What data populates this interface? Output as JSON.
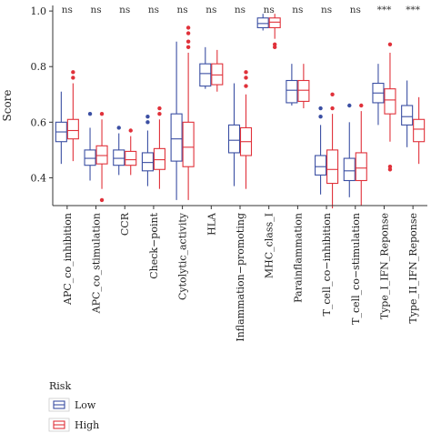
{
  "chart_data": {
    "type": "boxplot",
    "ylabel": "Score",
    "ylim": [
      0.3,
      1.02
    ],
    "yticks": [
      0.4,
      0.6,
      0.8,
      1.0
    ],
    "ytick_labels": [
      "0.4",
      "0.6",
      "0.8",
      "1.0"
    ],
    "grid": false,
    "legend": {
      "title": "Risk",
      "placement": "bottom-left",
      "entries": [
        "Low",
        "High"
      ]
    },
    "colors": {
      "Low": "#3b4fa3",
      "High": "#e0313a"
    },
    "categories": [
      "APC_co_inhibition",
      "APC_co_stimulation",
      "CCR",
      "Check−point",
      "Cytolytic_activity",
      "HLA",
      "Inflammation−promoting",
      "MHC_class_I",
      "Parainflammation",
      "T_cell_co−inhibition",
      "T_cell_co−stimulation",
      "Type_I_IFN_Reponse",
      "Type_II_IFN_Reponse"
    ],
    "significance": [
      "ns",
      "ns",
      "ns",
      "ns",
      "ns",
      "ns",
      "ns",
      "ns",
      "ns",
      "ns",
      "ns",
      "***",
      "***"
    ],
    "series": [
      {
        "name": "Low",
        "boxes": [
          {
            "min": 0.45,
            "q1": 0.53,
            "median": 0.565,
            "q3": 0.6,
            "max": 0.71,
            "outliers": []
          },
          {
            "min": 0.39,
            "q1": 0.445,
            "median": 0.47,
            "q3": 0.5,
            "max": 0.58,
            "outliers": [
              0.63
            ]
          },
          {
            "min": 0.41,
            "q1": 0.445,
            "median": 0.47,
            "q3": 0.5,
            "max": 0.56,
            "outliers": [
              0.58
            ]
          },
          {
            "min": 0.37,
            "q1": 0.425,
            "median": 0.455,
            "q3": 0.49,
            "max": 0.57,
            "outliers": [
              0.6,
              0.62
            ]
          },
          {
            "min": 0.32,
            "q1": 0.46,
            "median": 0.54,
            "q3": 0.63,
            "max": 0.89,
            "outliers": []
          },
          {
            "min": 0.72,
            "q1": 0.73,
            "median": 0.775,
            "q3": 0.81,
            "max": 0.87,
            "outliers": []
          },
          {
            "min": 0.37,
            "q1": 0.49,
            "median": 0.535,
            "q3": 0.59,
            "max": 0.74,
            "outliers": []
          },
          {
            "min": 0.93,
            "q1": 0.94,
            "median": 0.955,
            "q3": 0.975,
            "max": 0.99,
            "outliers": []
          },
          {
            "min": 0.66,
            "q1": 0.67,
            "median": 0.715,
            "q3": 0.75,
            "max": 0.81,
            "outliers": []
          },
          {
            "min": 0.34,
            "q1": 0.41,
            "median": 0.44,
            "q3": 0.48,
            "max": 0.59,
            "outliers": [
              0.62,
              0.65
            ]
          },
          {
            "min": 0.33,
            "q1": 0.39,
            "median": 0.425,
            "q3": 0.47,
            "max": 0.6,
            "outliers": [
              0.66
            ]
          },
          {
            "min": 0.59,
            "q1": 0.67,
            "median": 0.705,
            "q3": 0.74,
            "max": 0.81,
            "outliers": []
          },
          {
            "min": 0.51,
            "q1": 0.59,
            "median": 0.62,
            "q3": 0.66,
            "max": 0.75,
            "outliers": []
          }
        ]
      },
      {
        "name": "High",
        "boxes": [
          {
            "min": 0.46,
            "q1": 0.54,
            "median": 0.57,
            "q3": 0.61,
            "max": 0.74,
            "outliers": [
              0.76,
              0.78
            ]
          },
          {
            "min": 0.36,
            "q1": 0.45,
            "median": 0.48,
            "q3": 0.515,
            "max": 0.61,
            "outliers": [
              0.32,
              0.63
            ]
          },
          {
            "min": 0.41,
            "q1": 0.445,
            "median": 0.465,
            "q3": 0.495,
            "max": 0.55,
            "outliers": [
              0.57
            ]
          },
          {
            "min": 0.36,
            "q1": 0.43,
            "median": 0.465,
            "q3": 0.505,
            "max": 0.61,
            "outliers": [
              0.63,
              0.65
            ]
          },
          {
            "min": 0.32,
            "q1": 0.44,
            "median": 0.51,
            "q3": 0.6,
            "max": 0.85,
            "outliers": [
              0.87,
              0.89,
              0.92,
              0.94
            ]
          },
          {
            "min": 0.71,
            "q1": 0.735,
            "median": 0.77,
            "q3": 0.81,
            "max": 0.86,
            "outliers": []
          },
          {
            "min": 0.36,
            "q1": 0.48,
            "median": 0.53,
            "q3": 0.58,
            "max": 0.7,
            "outliers": [
              0.73,
              0.76,
              0.78
            ]
          },
          {
            "min": 0.9,
            "q1": 0.94,
            "median": 0.96,
            "q3": 0.975,
            "max": 0.99,
            "outliers": [
              0.87,
              0.88
            ]
          },
          {
            "min": 0.65,
            "q1": 0.675,
            "median": 0.715,
            "q3": 0.75,
            "max": 0.81,
            "outliers": []
          },
          {
            "min": 0.29,
            "q1": 0.38,
            "median": 0.43,
            "q3": 0.5,
            "max": 0.63,
            "outliers": [
              0.65,
              0.7
            ]
          },
          {
            "min": 0.3,
            "q1": 0.39,
            "median": 0.435,
            "q3": 0.49,
            "max": 0.64,
            "outliers": [
              0.66
            ]
          },
          {
            "min": 0.53,
            "q1": 0.63,
            "median": 0.68,
            "q3": 0.72,
            "max": 0.85,
            "outliers": [
              0.43,
              0.44,
              0.88
            ]
          },
          {
            "min": 0.45,
            "q1": 0.53,
            "median": 0.575,
            "q3": 0.61,
            "max": 0.69,
            "outliers": []
          }
        ]
      }
    ]
  }
}
